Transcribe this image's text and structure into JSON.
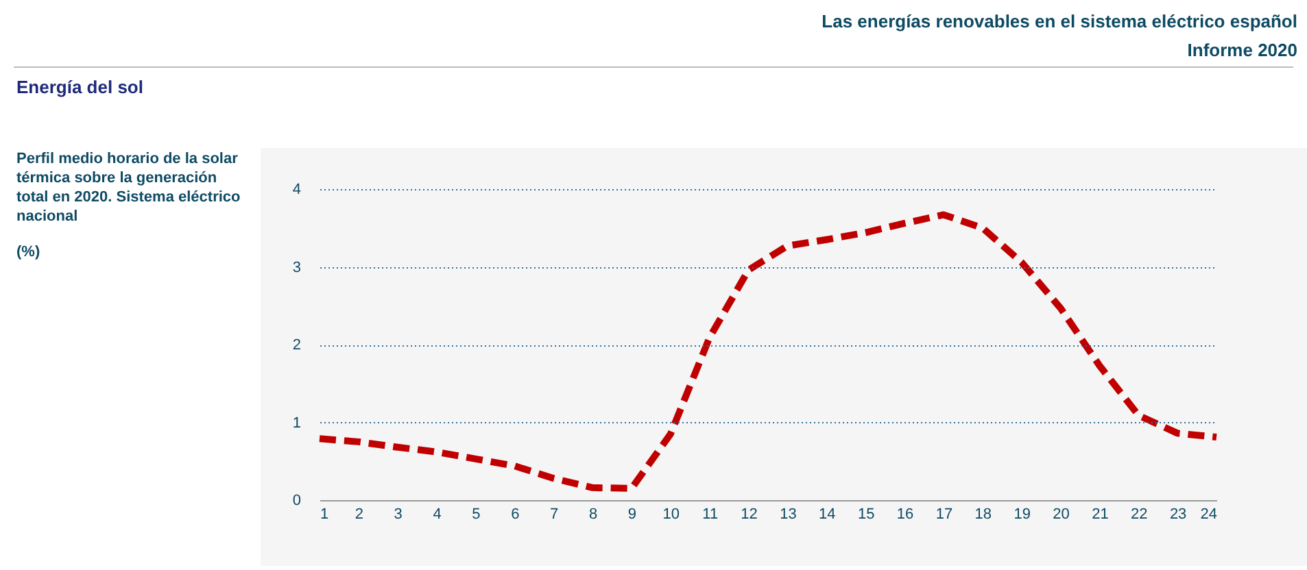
{
  "chart_data": {
    "type": "line",
    "title": "Las energías renovables en el sistema eléctrico español",
    "subtitle": "Informe 2020",
    "annotations": [
      "Energía del sol",
      "Perfil medio horario de la solar\ntérmica sobre la generación\ntotal en 2020.  Sistema eléctrico\nnacional",
      "(%)"
    ],
    "x": [
      1,
      2,
      3,
      4,
      5,
      6,
      7,
      8,
      9,
      10,
      11,
      12,
      13,
      14,
      15,
      16,
      17,
      18,
      19,
      20,
      21,
      22,
      23,
      24
    ],
    "series": [
      {
        "color": "#c00000",
        "values": [
          0.79,
          0.75,
          0.68,
          0.62,
          0.53,
          0.44,
          0.28,
          0.16,
          0.15,
          0.85,
          2.09,
          2.96,
          3.27,
          3.35,
          3.44,
          3.56,
          3.67,
          3.5,
          3.06,
          2.47,
          1.73,
          1.09,
          0.86,
          0.81
        ]
      }
    ],
    "xlim": [
      1,
      24
    ],
    "xticks": [
      1,
      2,
      3,
      4,
      5,
      6,
      7,
      8,
      9,
      10,
      11,
      12,
      13,
      14,
      15,
      16,
      17,
      18,
      19,
      20,
      21,
      22,
      23,
      24
    ],
    "ylim": [
      0,
      4
    ],
    "yticks": [
      0,
      1,
      2,
      3,
      4
    ],
    "grid": "y",
    "legend": false,
    "line_style": "dashed",
    "marker": "none"
  }
}
